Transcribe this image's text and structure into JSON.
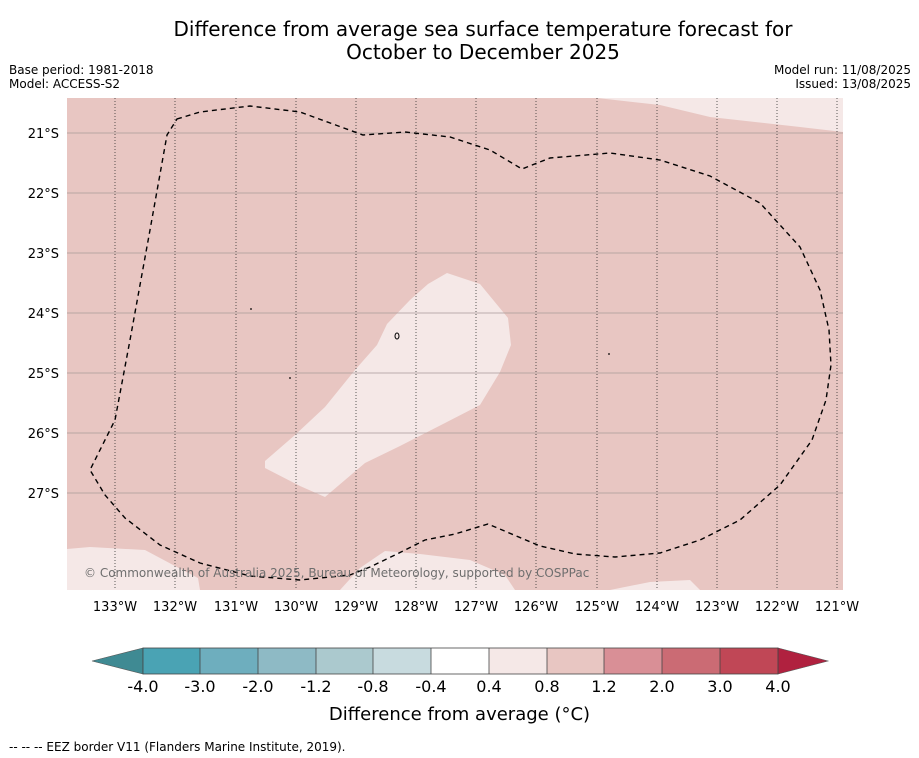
{
  "title_line1": "Difference from average sea surface temperature forecast for",
  "title_line2": "October to December 2025",
  "info_left": {
    "base_period": "Base period: 1981-2018",
    "model": "Model: ACCESS-S2"
  },
  "info_right": {
    "model_run": "Model run: 11/08/2025",
    "issued": "Issued: 13/08/2025"
  },
  "copyright": "© Commonwealth of Australia 2025, Bureau of Meteorology, supported by COSPPac",
  "footnote": "--  --  -- EEZ border V11 (Flanders Marine Institute, 2019).",
  "map": {
    "lat_labels": [
      "21°S",
      "22°S",
      "23°S",
      "24°S",
      "25°S",
      "26°S",
      "27°S"
    ],
    "lon_labels": [
      "133°W",
      "132°W",
      "131°W",
      "130°W",
      "129°W",
      "128°W",
      "127°W",
      "126°W",
      "125°W",
      "124°W",
      "123°W",
      "122°W",
      "121°W"
    ],
    "background_category": "0.8 to 1.2",
    "patch_category": "0.4 to 0.8"
  },
  "colorbar": {
    "title": "Difference from average (°C)",
    "tick_labels": [
      "-4.0",
      "-3.0",
      "-2.0",
      "-1.2",
      "-0.8",
      "-0.4",
      "0.4",
      "0.8",
      "1.2",
      "2.0",
      "3.0",
      "4.0"
    ],
    "colors": [
      "#4aa3b4",
      "#6eaebe",
      "#8ebac5",
      "#abc9ce",
      "#c8dbdf",
      "#ffffff",
      "#f5e8e7",
      "#e8c6c2",
      "#d98f96",
      "#cb6b74",
      "#c04756"
    ],
    "under_color": "#3f8a93",
    "over_color": "#b0213f"
  }
}
